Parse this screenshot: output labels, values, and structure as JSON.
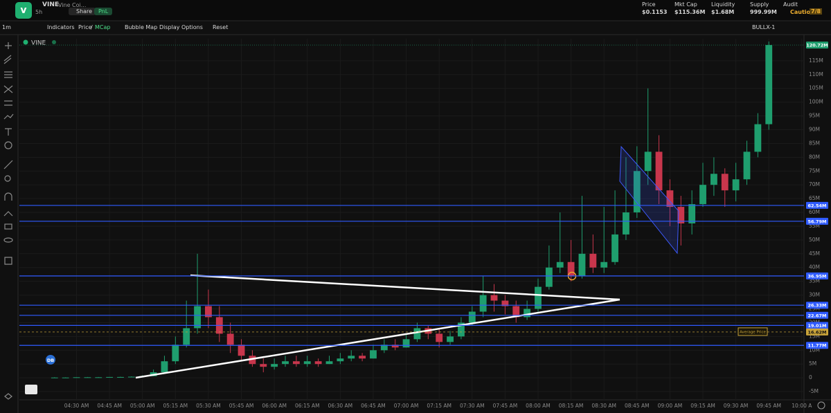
{
  "header": {
    "symbol": "VINE",
    "name": "Vine Coi...",
    "age": "5h",
    "share": "Share",
    "pnl": "PnL",
    "stats": [
      {
        "label": "Price",
        "value": "$0.1153"
      },
      {
        "label": "Mkt Cap",
        "value": "$115.36M"
      },
      {
        "label": "Liquidity",
        "value": "$1.68M"
      },
      {
        "label": "Supply",
        "value": "999.99M"
      },
      {
        "label": "Audit",
        "value": "Caution",
        "score": "7/8"
      }
    ]
  },
  "toolbar": {
    "interval": "1m",
    "indicators": "Indicators",
    "price": "Price",
    "separator": "/",
    "mcap": "MCap",
    "bubble_map": "Bubble Map",
    "display_options": "Display Options",
    "reset": "Reset",
    "wallet": "BULLX-1"
  },
  "chart_data": {
    "type": "candlestick",
    "name": "VINE",
    "badge": "DB",
    "up_color": "#1f9e6e",
    "down_color": "#c8364c",
    "grid": true,
    "x": [
      260,
      265,
      270,
      275,
      280,
      285,
      290,
      295,
      300,
      305,
      310,
      315,
      320,
      325,
      330,
      335,
      340,
      345,
      350,
      355,
      360,
      365,
      370,
      375,
      380,
      385,
      390,
      395,
      400,
      405,
      410,
      415,
      420,
      425,
      430,
      435,
      440,
      445,
      450,
      455,
      460,
      465,
      470,
      475,
      480,
      485,
      490,
      495,
      500,
      505,
      510,
      515,
      520,
      525,
      530,
      535,
      540,
      545,
      550,
      555,
      560,
      565,
      570,
      575,
      580,
      585
    ],
    "open": [
      0.1,
      0.1,
      0.1,
      0.2,
      0.2,
      0.2,
      0.3,
      0.3,
      0.4,
      0.6,
      2,
      6,
      12,
      18,
      26,
      22,
      16,
      12,
      8,
      5,
      4,
      5,
      6,
      5,
      6,
      5,
      6,
      7,
      8,
      7,
      10,
      12,
      11,
      14,
      18,
      16,
      13,
      15,
      20,
      24,
      30,
      28,
      26,
      22,
      25,
      33,
      40,
      42,
      37,
      45,
      40,
      42,
      52,
      60,
      75,
      82,
      68,
      62,
      56,
      63,
      70,
      74,
      68,
      72,
      82,
      92
    ],
    "high": [
      0.2,
      0.2,
      0.2,
      0.3,
      0.3,
      0.3,
      0.4,
      0.5,
      0.9,
      3,
      8,
      15,
      28,
      45,
      32,
      26,
      20,
      14,
      10,
      7,
      7,
      8,
      8,
      8,
      7,
      8,
      9,
      10,
      9,
      12,
      14,
      14,
      16,
      20,
      19,
      18,
      17,
      22,
      26,
      37,
      34,
      30,
      28,
      28,
      36,
      48,
      60,
      50,
      66,
      52,
      62,
      68,
      80,
      84,
      105,
      88,
      72,
      66,
      68,
      78,
      80,
      76,
      78,
      86,
      96,
      122
    ],
    "low": [
      0,
      0.1,
      0.1,
      0.2,
      0.2,
      0.2,
      0.3,
      0.3,
      0.4,
      0.6,
      2,
      5,
      11,
      16,
      18,
      13,
      9,
      6,
      4,
      2,
      3,
      4,
      4,
      4,
      4,
      5,
      5,
      6,
      6,
      7,
      9,
      10,
      11,
      13,
      14,
      11,
      12,
      14,
      19,
      22,
      24,
      23,
      20,
      21,
      24,
      32,
      38,
      35,
      36,
      38,
      38,
      41,
      50,
      58,
      70,
      63,
      55,
      48,
      52,
      62,
      66,
      62,
      64,
      70,
      80,
      90
    ],
    "close": [
      0.1,
      0.1,
      0.2,
      0.2,
      0.2,
      0.3,
      0.3,
      0.4,
      0.6,
      2,
      6,
      12,
      18,
      26,
      22,
      16,
      12,
      8,
      5,
      4,
      5,
      6,
      5,
      6,
      5,
      6,
      7,
      8,
      7,
      10,
      12,
      11,
      14,
      18,
      16,
      13,
      15,
      20,
      24,
      30,
      28,
      26,
      22,
      25,
      33,
      40,
      42,
      37,
      45,
      40,
      42,
      52,
      60,
      75,
      82,
      68,
      62,
      56,
      63,
      70,
      74,
      68,
      72,
      82,
      92,
      120.72
    ],
    "xlim": [
      244,
      601
    ],
    "xticks": [
      {
        "value": 270,
        "label": "04:30 AM"
      },
      {
        "value": 285,
        "label": "04:45 AM"
      },
      {
        "value": 300,
        "label": "05:00 AM"
      },
      {
        "value": 315,
        "label": "05:15 AM"
      },
      {
        "value": 330,
        "label": "05:30 AM"
      },
      {
        "value": 345,
        "label": "05:45 AM"
      },
      {
        "value": 360,
        "label": "06:00 AM"
      },
      {
        "value": 375,
        "label": "06:15 AM"
      },
      {
        "value": 390,
        "label": "06:30 AM"
      },
      {
        "value": 405,
        "label": "06:45 AM"
      },
      {
        "value": 420,
        "label": "07:00 AM"
      },
      {
        "value": 435,
        "label": "07:15 AM"
      },
      {
        "value": 450,
        "label": "07:30 AM"
      },
      {
        "value": 465,
        "label": "07:45 AM"
      },
      {
        "value": 480,
        "label": "08:00 AM"
      },
      {
        "value": 495,
        "label": "08:15 AM"
      },
      {
        "value": 510,
        "label": "08:30 AM"
      },
      {
        "value": 525,
        "label": "08:45 AM"
      },
      {
        "value": 540,
        "label": "09:00 AM"
      },
      {
        "value": 555,
        "label": "09:15 AM"
      },
      {
        "value": 570,
        "label": "09:30 AM"
      },
      {
        "value": 585,
        "label": "09:45 AM"
      },
      {
        "value": 600,
        "label": "10:00 A"
      }
    ],
    "ylim": [
      -8,
      123
    ],
    "yticks": [
      {
        "value": -5,
        "label": "-5M"
      },
      0,
      {
        "value": 5,
        "label": "5M"
      },
      {
        "value": 10,
        "label": "10M"
      },
      {
        "value": 15,
        "label": "15M"
      },
      {
        "value": 20,
        "label": "20M"
      },
      {
        "value": 25,
        "label": "25M"
      },
      {
        "value": 30,
        "label": "30M"
      },
      {
        "value": 35,
        "label": "35M"
      },
      {
        "value": 40,
        "label": "40M"
      },
      {
        "value": 45,
        "label": "45M"
      },
      {
        "value": 50,
        "label": "50M"
      },
      {
        "value": 55,
        "label": "55M"
      },
      {
        "value": 60,
        "label": "60M"
      },
      {
        "value": 65,
        "label": "65M"
      },
      {
        "value": 70,
        "label": "70M"
      },
      {
        "value": 75,
        "label": "75M"
      },
      {
        "value": 80,
        "label": "80M"
      },
      {
        "value": 85,
        "label": "85M"
      },
      {
        "value": 90,
        "label": "90M"
      },
      {
        "value": 95,
        "label": "95M"
      },
      {
        "value": 100,
        "label": "100M"
      },
      {
        "value": 105,
        "label": "105M"
      },
      {
        "value": 110,
        "label": "110M"
      },
      {
        "value": 115,
        "label": "115M"
      }
    ],
    "levels": {
      "color": "#2f5bff",
      "values": [
        62.54,
        56.79,
        36.95,
        26.33,
        22.67,
        19.01,
        11.77
      ],
      "value_labels": [
        "62.54M",
        "56.79M",
        "36.95M",
        "26.33M",
        "22.67M",
        "19.01M",
        "11.77M"
      ]
    },
    "current_price": {
      "value": 120.72,
      "label": "120.72M",
      "color": "#1f9e6e"
    },
    "average_price": {
      "name": "Average Price",
      "value": 16.62,
      "label": "16.62M",
      "color": "#c9a43a"
    }
  }
}
